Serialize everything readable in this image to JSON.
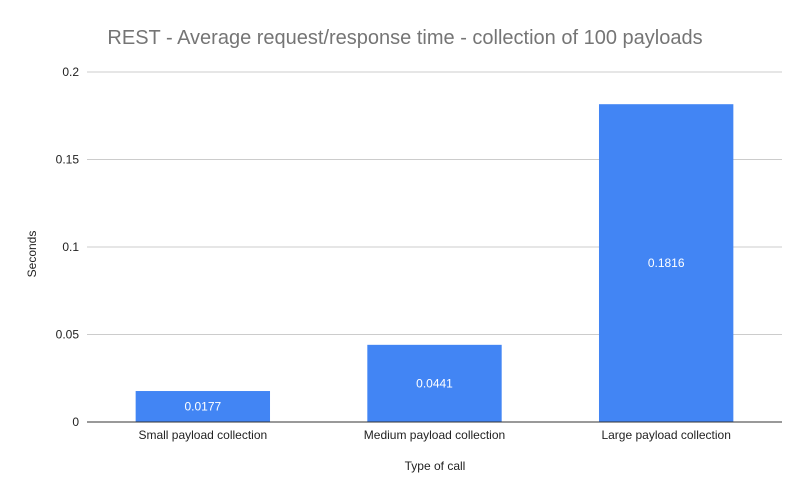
{
  "chart_data": {
    "type": "bar",
    "title": "REST - Average request/response time - collection of 100 payloads",
    "xlabel": "Type of call",
    "ylabel": "Seconds",
    "categories": [
      "Small payload collection",
      "Medium payload collection",
      "Large payload collection"
    ],
    "values": [
      0.0177,
      0.0441,
      0.1816
    ],
    "data_labels": [
      "0.0177",
      "0.0441",
      "0.1816"
    ],
    "ylim": [
      0,
      0.2
    ],
    "yticks": [
      0,
      0.05,
      0.1,
      0.15,
      0.2
    ],
    "ytick_labels": [
      "0",
      "0.05",
      "0.1",
      "0.15",
      "0.2"
    ],
    "grid": true,
    "legend": "none",
    "colors": {
      "bar": "#4285f4"
    }
  }
}
